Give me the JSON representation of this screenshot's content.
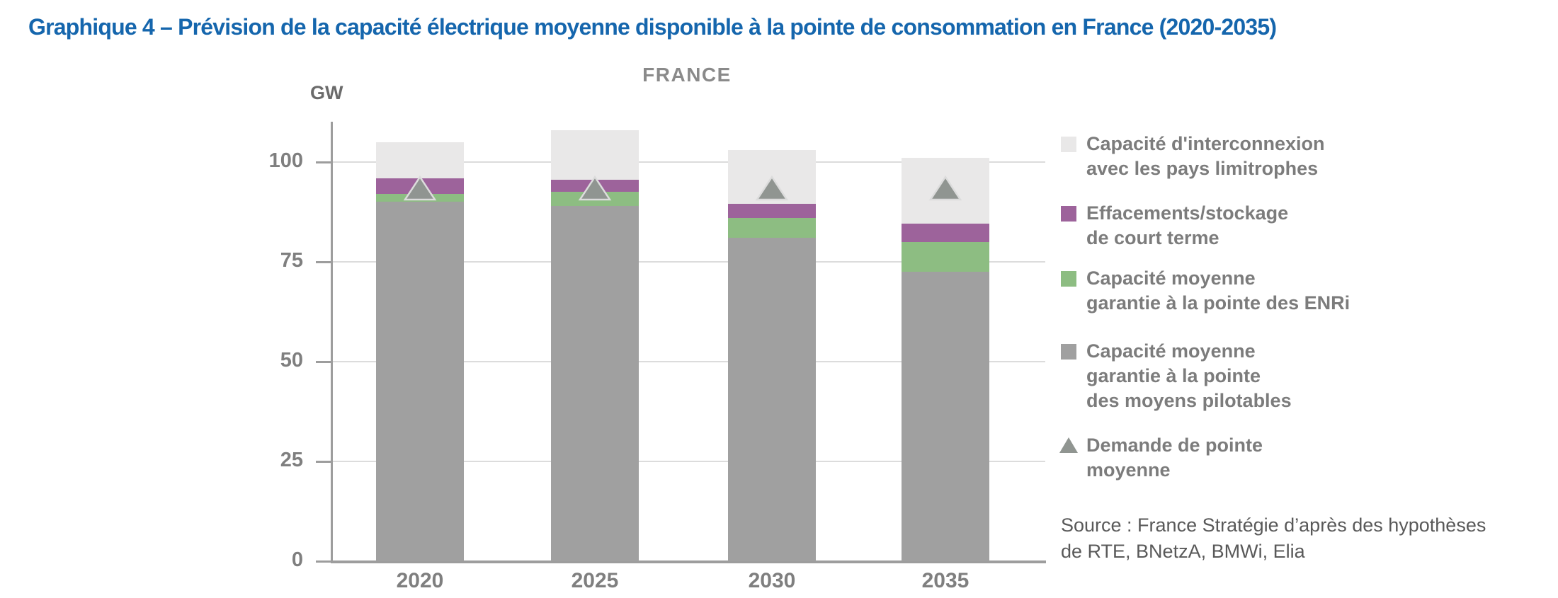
{
  "title": "Graphique 4 – Prévision de la capacité électrique moyenne disponible à la pointe de consommation en France (2020-2035)",
  "chart_data": {
    "type": "bar",
    "stacked": true,
    "title": "FRANCE",
    "unit_label": "GW",
    "xlabel": "",
    "ylabel": "GW",
    "categories": [
      "2020",
      "2025",
      "2030",
      "2035"
    ],
    "series": [
      {
        "key": "pilotables",
        "name": "Capacité moyenne garantie à la pointe des moyens pilotables",
        "color": "#a0a0a0",
        "values": [
          90,
          89,
          81,
          72.5
        ]
      },
      {
        "key": "enri",
        "name": "Capacité moyenne garantie à la pointe des ENRi",
        "color": "#8dbd82",
        "values": [
          2,
          3.5,
          5,
          7.5
        ]
      },
      {
        "key": "effacements",
        "name": "Effacements/stockage de court terme",
        "color": "#9d639b",
        "values": [
          4,
          3,
          3.5,
          4.5
        ]
      },
      {
        "key": "interconnexion",
        "name": "Capacité d'interconnexion avec les pays limitrophes",
        "color": "#e9e8e8",
        "values": [
          9,
          12.5,
          13.5,
          16.5
        ]
      }
    ],
    "marker_series": {
      "key": "demande",
      "name": "Demande de pointe moyenne",
      "shape": "triangle",
      "color": "#909591",
      "values": [
        93.5,
        93.5,
        93.5,
        93.5
      ]
    },
    "totals": [
      105,
      108,
      103,
      101
    ],
    "y_ticks": [
      0,
      25,
      50,
      75,
      100
    ],
    "ylim": [
      0,
      110
    ],
    "grid": true,
    "legend_position": "right"
  },
  "legend": {
    "items": [
      {
        "key": "interconnexion",
        "swatch": "square",
        "color": "#e9e8e8",
        "lines": [
          "Capacité d'interconnexion",
          "avec les pays limitrophes"
        ]
      },
      {
        "key": "effacements",
        "swatch": "square",
        "color": "#9d639b",
        "lines": [
          "Effacements/stockage",
          "de court terme"
        ]
      },
      {
        "key": "enri",
        "swatch": "square",
        "color": "#8dbd82",
        "lines": [
          "Capacité moyenne",
          "garantie à la pointe des ENRi"
        ]
      },
      {
        "key": "pilotables",
        "swatch": "square",
        "color": "#a0a0a0",
        "lines": [
          "Capacité moyenne",
          "garantie à la pointe",
          "des moyens pilotables"
        ]
      },
      {
        "key": "demande",
        "swatch": "triangle",
        "color": "#909591",
        "lines": [
          "Demande de pointe",
          "moyenne"
        ]
      }
    ]
  },
  "source": {
    "line1": "Source : France Stratégie d’après des hypothèses",
    "line2": "de RTE, BNetzA, BMWi, Elia"
  },
  "colors": {
    "title_blue": "#1566ad",
    "subtitle_gray": "#8a8a8a",
    "unit_label_gray": "#6b6b6b",
    "axis_label_gray": "#7f7f7f",
    "axis_line": "#9d9d9d",
    "gridline": "#dcdcdc",
    "legend_text": "#7c7c7c",
    "source_text": "#595959",
    "marker_stroke": "#dcdcdc",
    "background": "#ffffff"
  }
}
